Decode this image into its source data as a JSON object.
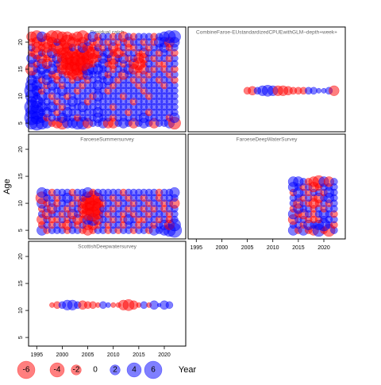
{
  "chart_data": {
    "type": "bubble",
    "x_label": "Year",
    "y_label": "Age",
    "xlim": [
      1993.4,
      2024.2
    ],
    "ylim": [
      3.4,
      22.8
    ],
    "xticks": [
      1995,
      2000,
      2005,
      2010,
      2015,
      2020
    ],
    "yticks": [
      5,
      10,
      15,
      20
    ],
    "positive_color": "#0000ff",
    "negative_color": "#ff0000",
    "legend": [
      -6,
      -4,
      -2,
      0,
      2,
      4,
      6
    ],
    "panels": [
      {
        "title": "Residual catch",
        "x": [
          1994,
          1995,
          1996,
          1997,
          1998,
          1999,
          2000,
          2001,
          2002,
          2003,
          2004,
          2005,
          2006,
          2007,
          2008,
          2009,
          2010,
          2011,
          2012,
          2013,
          2014,
          2015,
          2016,
          2017,
          2018,
          2019,
          2020,
          2021,
          2022
        ],
        "y": [
          5,
          6,
          7,
          8,
          9,
          10,
          11,
          12,
          13,
          14,
          15,
          16,
          17,
          18,
          19,
          20,
          21
        ],
        "values": [
          [
            3,
            4,
            3,
            2,
            -1,
            -2,
            -3,
            2,
            2,
            3,
            3,
            -2,
            1,
            1,
            2,
            -2,
            -2,
            1,
            2,
            1,
            -2,
            1,
            2,
            1,
            -2,
            1,
            1,
            2,
            -3
          ],
          [
            4,
            3,
            2,
            -1,
            1,
            1,
            2,
            1,
            1,
            -1,
            1,
            1,
            1,
            2,
            1,
            1,
            -1,
            1,
            1,
            1,
            1,
            1,
            2,
            1,
            1,
            1,
            1,
            -1,
            2
          ],
          [
            3,
            4,
            1,
            2,
            1,
            -1,
            1,
            2,
            1,
            1,
            1,
            1,
            1,
            2,
            1,
            1,
            1,
            1,
            1,
            -1,
            1,
            1,
            1,
            -1,
            1,
            1,
            1,
            1,
            1
          ],
          [
            4,
            3,
            2,
            1,
            2,
            1,
            -1,
            1,
            1,
            1,
            2,
            1,
            1,
            1,
            1,
            1,
            -1,
            1,
            1,
            1,
            1,
            1,
            1,
            1,
            1,
            1,
            1,
            1,
            1
          ],
          [
            2,
            3,
            1,
            1,
            1,
            -1,
            1,
            1,
            2,
            1,
            1,
            -1,
            1,
            1,
            1,
            1,
            1,
            1,
            1,
            1,
            -1,
            1,
            1,
            1,
            1,
            1,
            1,
            1,
            1
          ],
          [
            3,
            1,
            2,
            1,
            -1,
            1,
            1,
            -1,
            1,
            1,
            1,
            1,
            -1,
            2,
            1,
            1,
            1,
            1,
            -1,
            1,
            1,
            1,
            1,
            -1,
            1,
            1,
            1,
            1,
            1
          ],
          [
            4,
            2,
            -1,
            1,
            1,
            1,
            2,
            1,
            1,
            -1,
            1,
            1,
            1,
            1,
            1,
            -1,
            1,
            1,
            1,
            1,
            1,
            1,
            -1,
            1,
            1,
            1,
            1,
            1,
            1
          ],
          [
            3,
            2,
            1,
            -1,
            2,
            1,
            -1,
            1,
            1,
            1,
            -1,
            1,
            1,
            2,
            1,
            1,
            -1,
            1,
            1,
            1,
            1,
            -1,
            1,
            1,
            1,
            1,
            -1,
            1,
            1
          ],
          [
            2,
            1,
            -1,
            2,
            1,
            -1,
            1,
            1,
            -1,
            1,
            1,
            -1,
            1,
            1,
            1,
            2,
            1,
            -1,
            1,
            1,
            -1,
            1,
            -1,
            1,
            1,
            -1,
            1,
            1,
            -1
          ],
          [
            1,
            2,
            1,
            2,
            -1,
            -2,
            1,
            -1,
            -2,
            -3,
            -2,
            2,
            1,
            1,
            2,
            -1,
            1,
            1,
            -2,
            1,
            1,
            -1,
            1,
            -1,
            1,
            1,
            1,
            -1,
            1
          ],
          [
            -3,
            1,
            2,
            1,
            2,
            1,
            -2,
            -3,
            -4,
            -3,
            -2,
            3,
            2,
            2,
            1,
            1,
            -1,
            1,
            1,
            2,
            -2,
            -1,
            -2,
            1,
            -1,
            1,
            -1,
            1,
            -1
          ],
          [
            1,
            -1,
            2,
            -2,
            1,
            1,
            -3,
            -3,
            -4,
            -5,
            -4,
            -2,
            -1,
            1,
            2,
            -1,
            -2,
            1,
            -1,
            1,
            -2,
            -3,
            -1,
            1,
            1,
            -1,
            -1,
            1,
            1
          ],
          [
            2,
            1,
            -2,
            -1,
            -1,
            2,
            -2,
            -3,
            -4,
            -4,
            -3,
            -3,
            -2,
            -1,
            2,
            1,
            -3,
            1,
            2,
            -1,
            1,
            -2,
            -2,
            1,
            -1,
            1,
            1,
            -1,
            1
          ],
          [
            -1,
            -3,
            1,
            -2,
            2,
            -1,
            -2,
            -3,
            -2,
            -1,
            -3,
            -4,
            -3,
            -2,
            1,
            2,
            -1,
            -2,
            -1,
            1,
            1,
            -1,
            -2,
            1,
            1,
            -1,
            1,
            1,
            -1
          ],
          [
            1,
            -2,
            -1,
            -2,
            -1,
            -3,
            -4,
            -2,
            1,
            -1,
            2,
            -2,
            -1,
            1,
            -1,
            1,
            -2,
            -1,
            1,
            -1,
            -1,
            1,
            1,
            -1,
            1,
            1,
            2,
            -1,
            1
          ],
          [
            -1,
            -2,
            -1,
            -3,
            -2,
            1,
            -1,
            -4,
            -2,
            -1,
            -2,
            1,
            -1,
            -2,
            1,
            -1,
            1,
            -1,
            1,
            -2,
            1,
            1,
            -1,
            1,
            -1,
            2,
            2,
            -2,
            2
          ],
          [
            -2,
            -3,
            2,
            -1,
            -3,
            -3,
            -2,
            -2,
            -1,
            -2,
            -3,
            -1,
            2,
            -1,
            1,
            1,
            -1,
            1,
            -2,
            1,
            -1,
            1,
            1,
            1,
            -1,
            1,
            2,
            3,
            3
          ]
        ]
      },
      {
        "title": "CombineFaroe-EUstandardizedCPUEwithGLM~depth+week+",
        "x": [
          2005,
          2006,
          2007,
          2008,
          2009,
          2010,
          2011,
          2012,
          2013,
          2014,
          2015,
          2016,
          2017,
          2018,
          2019,
          2020,
          2021,
          2022
        ],
        "y": [
          11
        ],
        "values": [
          [
            -1,
            -1.5,
            1,
            2,
            2.5,
            2,
            -2,
            -2,
            -1.5,
            -1,
            -1,
            -1,
            1,
            1,
            0.5,
            0.5,
            1,
            -2
          ]
        ]
      },
      {
        "title": "FaroeseSummersurvey",
        "x": [
          1996,
          1997,
          1998,
          1999,
          2000,
          2001,
          2002,
          2003,
          2004,
          2005,
          2006,
          2007,
          2008,
          2009,
          2010,
          2011,
          2012,
          2013,
          2014,
          2015,
          2016,
          2017,
          2018,
          2019,
          2020,
          2021,
          2022
        ],
        "y": [
          5,
          6,
          7,
          8,
          9,
          10,
          11,
          12
        ],
        "values": [
          [
            2,
            -1,
            1,
            1,
            1,
            -1,
            1,
            1,
            -1,
            -2,
            -1,
            1,
            1,
            -1,
            1,
            -1,
            1,
            1,
            -1,
            1,
            1,
            -1,
            2,
            1,
            2,
            3,
            4
          ],
          [
            -1,
            1,
            -1,
            1,
            -1,
            -2,
            1,
            -1,
            1,
            -2,
            -2,
            -1,
            1,
            -1,
            1,
            1,
            -1,
            1,
            1,
            -1,
            1,
            1,
            -1,
            1,
            2,
            -2,
            3
          ],
          [
            -2,
            1,
            -1,
            -1,
            1,
            -1,
            1,
            -2,
            -1,
            2,
            3,
            -2,
            1,
            1,
            -1,
            1,
            -1,
            2,
            1,
            -1,
            -1,
            1,
            1,
            -1,
            1,
            -1,
            1
          ],
          [
            1,
            -2,
            1,
            1,
            -1,
            1,
            -2,
            1,
            -1,
            -3,
            -4,
            -2,
            1,
            -1,
            1,
            1,
            -1,
            1,
            -1,
            1,
            1,
            -1,
            1,
            1,
            1,
            -1,
            1
          ],
          [
            -1,
            1,
            -2,
            1,
            1,
            -1,
            1,
            1,
            -2,
            -3,
            -5,
            -3,
            1,
            1,
            -1,
            1,
            1,
            -1,
            1,
            1,
            -1,
            1,
            -1,
            1,
            -1,
            1,
            1
          ],
          [
            2,
            -1,
            1,
            -1,
            1,
            1,
            -1,
            1,
            -2,
            -4,
            -5,
            -2,
            -1,
            1,
            1,
            -1,
            1,
            1,
            -1,
            1,
            1,
            -1,
            1,
            1,
            -1,
            1,
            -2
          ],
          [
            -3,
            1,
            1,
            -1,
            1,
            2,
            1,
            -1,
            1,
            -3,
            -4,
            -2,
            1,
            1,
            -1,
            1,
            1,
            -1,
            1,
            1,
            -1,
            1,
            1,
            -1,
            1,
            1,
            1
          ],
          [
            2,
            1,
            -1,
            1,
            1,
            1,
            -1,
            1,
            1,
            2,
            -1,
            1,
            1,
            1,
            1,
            1,
            -1,
            1,
            1,
            1,
            1,
            1,
            1,
            -1,
            1,
            1,
            2
          ]
        ]
      },
      {
        "title": "FaroeseDeepWaterSurvey",
        "x": [
          2014,
          2015,
          2016,
          2017,
          2018,
          2019,
          2020,
          2021,
          2022
        ],
        "y": [
          5,
          6,
          7,
          8,
          9,
          10,
          11,
          12,
          13,
          14
        ],
        "values": [
          [
            2,
            -1,
            2,
            -1,
            -2,
            3,
            -1,
            -3,
            1
          ],
          [
            1,
            1,
            -1,
            2,
            1,
            2,
            3,
            1,
            -1
          ],
          [
            -2,
            1,
            1,
            -1,
            -1,
            -1,
            1,
            1,
            1
          ],
          [
            2,
            -1,
            -2,
            1,
            -1,
            1,
            2,
            1,
            -1
          ],
          [
            -1,
            2,
            1,
            1,
            -1,
            1,
            -1,
            1,
            1
          ],
          [
            1,
            -2,
            1,
            -1,
            -2,
            -1,
            1,
            -1,
            1
          ],
          [
            1,
            1,
            -1,
            1,
            -1,
            -2,
            1,
            2,
            1
          ],
          [
            -1,
            2,
            1,
            -1,
            1,
            1,
            -1,
            2,
            1
          ],
          [
            2,
            1,
            -1,
            1,
            -2,
            -1,
            1,
            1,
            1
          ],
          [
            2,
            2,
            1,
            -1,
            -2,
            -3,
            2,
            -2,
            1
          ]
        ]
      },
      {
        "title": "ScottishDeepwatersurvey",
        "x": [
          1998,
          1999,
          2000,
          2001,
          2002,
          2003,
          2004,
          2005,
          2006,
          2007,
          2008,
          2009,
          2010,
          2011,
          2012,
          2013,
          2014,
          2015,
          2016,
          2017,
          2018,
          2019,
          2020,
          2021
        ],
        "y": [
          11
        ],
        "values": [
          [
            -0.5,
            -1,
            1,
            2,
            2,
            1,
            -1.5,
            -1,
            -1,
            -0.5,
            1,
            0.5,
            -0.5,
            -0.5,
            -2,
            -2.5,
            -1.5,
            -0.5,
            1,
            -0.5,
            1.5,
            0.3,
            1.5,
            1
          ]
        ]
      }
    ]
  }
}
